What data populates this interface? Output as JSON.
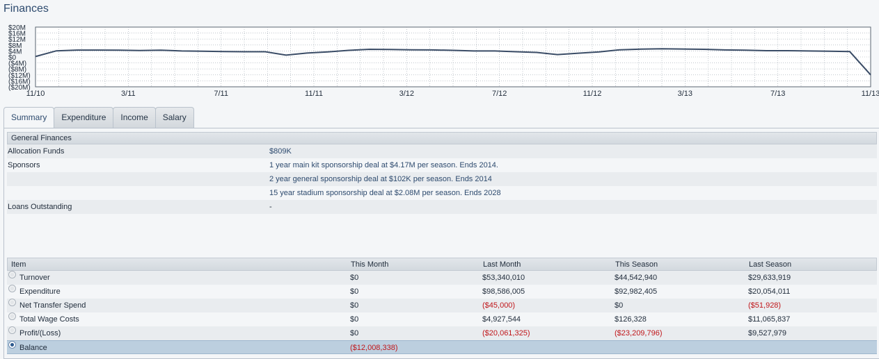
{
  "title": "Finances",
  "chart_data": {
    "type": "line",
    "yticks": [
      "$20M",
      "$16M",
      "$12M",
      "$8M",
      "$4M",
      "$0",
      "($4M)",
      "($8M)",
      "($12M)",
      "($16M)",
      "($20M)"
    ],
    "xticks": [
      "11/10",
      "3/11",
      "7/11",
      "11/11",
      "3/12",
      "7/12",
      "11/12",
      "3/13",
      "7/13",
      "11/13"
    ],
    "ylim": [
      -20,
      20
    ],
    "y_unit": "M",
    "grid": true,
    "series": [
      {
        "values": [
          0.3,
          4.1,
          4.6,
          4.6,
          4.5,
          4.3,
          4.5,
          4.0,
          3.8,
          3.6,
          3.5,
          3.5,
          1.2,
          2.6,
          3.4,
          4.4,
          5.1,
          5.0,
          4.8,
          4.7,
          4.4,
          4.0,
          4.0,
          3.5,
          3.0,
          1.6,
          2.5,
          3.4,
          4.8,
          5.2,
          5.5,
          5.3,
          5.1,
          4.7,
          4.5,
          4.2,
          4.2,
          4.0,
          3.8,
          3.6,
          -12.0
        ]
      }
    ]
  },
  "tabs": [
    {
      "label": "Summary",
      "active": true
    },
    {
      "label": "Expenditure",
      "active": false
    },
    {
      "label": "Income",
      "active": false
    },
    {
      "label": "Salary",
      "active": false
    }
  ],
  "general": {
    "header": "General Finances",
    "allocation_label": "Allocation Funds",
    "allocation_value": "$809K",
    "sponsors_label": "Sponsors",
    "sponsors": [
      "1 year main kit sponsorship deal at $4.17M per season. Ends 2014.",
      "2 year general sponsorship deal at $102K per season. Ends 2014",
      "15 year stadium sponsorship deal at $2.08M per season. Ends 2028"
    ],
    "loans_label": "Loans Outstanding",
    "loans_value": "-"
  },
  "table": {
    "columns": [
      "Item",
      "This Month",
      "Last Month",
      "This Season",
      "Last Season"
    ],
    "rows": [
      {
        "item": "Turnover",
        "cells": [
          "$0",
          "$53,340,010",
          "$44,542,940",
          "$29,633,919"
        ]
      },
      {
        "item": "Expenditure",
        "cells": [
          "$0",
          "$98,586,005",
          "$92,982,405",
          "$20,054,011"
        ]
      },
      {
        "item": "Net Transfer Spend",
        "cells": [
          "$0",
          "($45,000)",
          "$0",
          "($51,928)"
        ]
      },
      {
        "item": "Total Wage Costs",
        "cells": [
          "$0",
          "$4,927,544",
          "$126,328",
          "$11,065,837"
        ]
      },
      {
        "item": "Profit/(Loss)",
        "cells": [
          "$0",
          "($20,061,325)",
          "($23,209,796)",
          "$9,527,979"
        ]
      },
      {
        "item": "Balance",
        "cells": [
          "($12,008,338)",
          "",
          "",
          ""
        ]
      }
    ],
    "selected_row": "Balance"
  },
  "colors": {
    "line": "#3a4c66",
    "negative": "#c0161a",
    "selected_row": "#bccfdf"
  }
}
